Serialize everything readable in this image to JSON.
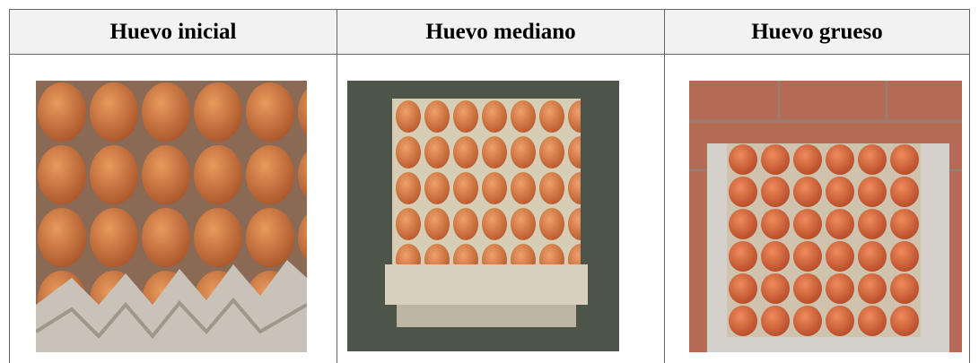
{
  "table": {
    "headers": [
      "Huevo inicial",
      "Huevo mediano",
      "Huevo grueso"
    ]
  }
}
